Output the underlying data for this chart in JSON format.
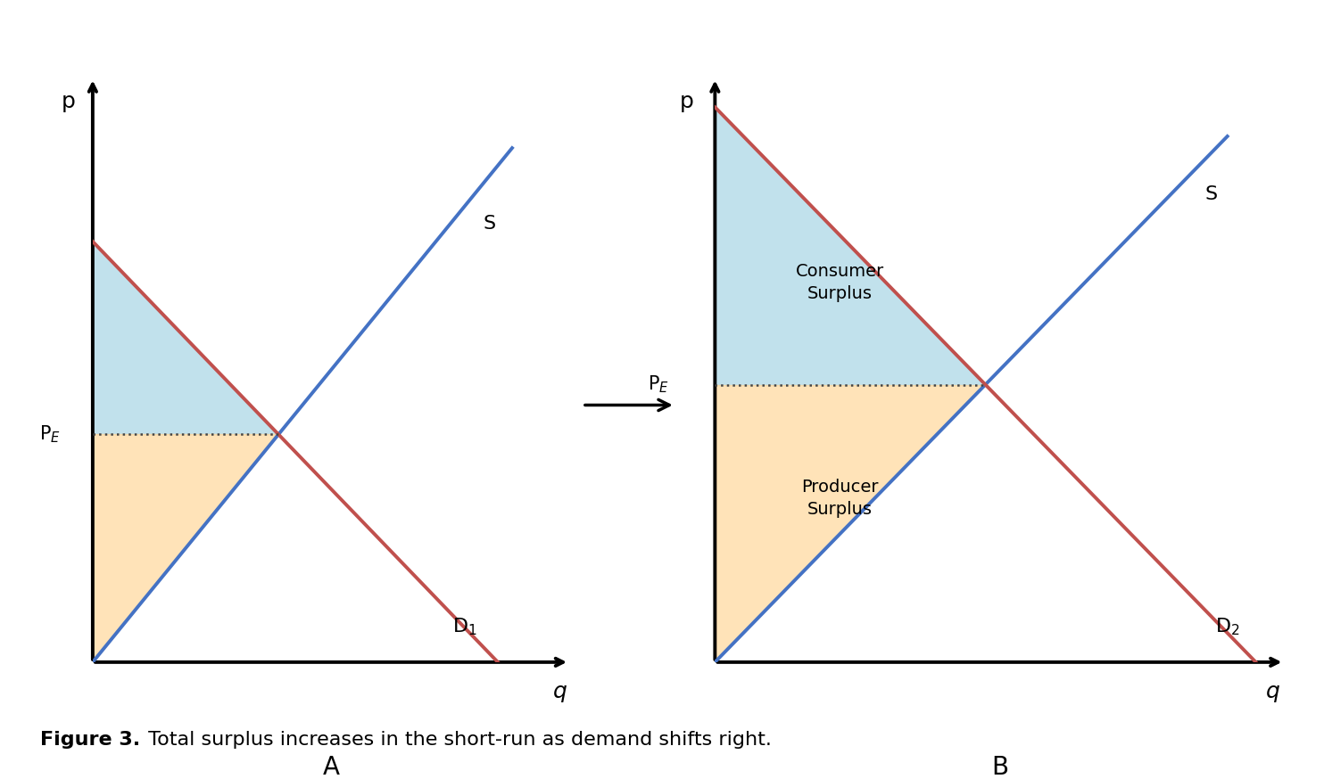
{
  "bg_color": "#ffffff",
  "supply_color": "#4472C4",
  "demand_color": "#C0504D",
  "consumer_surplus_color": "#ADD8E6",
  "producer_surplus_color": "#FFDAA0",
  "cs_alpha": 0.75,
  "ps_alpha": 0.75,
  "axis_color": "#000000",
  "dotted_color": "#444444",
  "line_width": 2.8,
  "axis_lw": 2.8,
  "label_fs": 18,
  "small_fs": 15,
  "caption_fs": 16,
  "panel_fs": 20,
  "caption_bold": "Figure 3.",
  "caption_normal": " Total surplus increases in the short-run as demand shifts right.",
  "arrow_color": "#000000",
  "panel_A": "A",
  "panel_B": "B"
}
